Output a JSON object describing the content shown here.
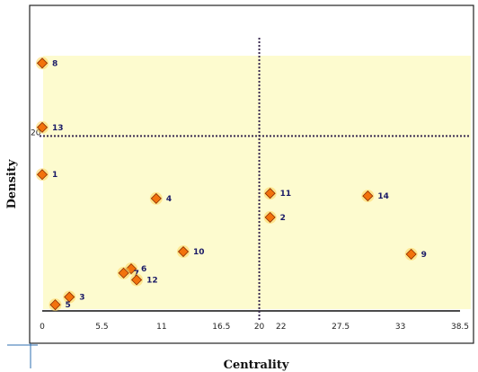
{
  "chart_data": {
    "type": "scatter",
    "xlabel": "Centrality",
    "ylabel": "Density",
    "x_ticks": [
      "0",
      "5.5",
      "11",
      "16.5",
      "20",
      "22",
      "27.5",
      "33",
      "38.5"
    ],
    "x_tick_values": [
      0,
      5.5,
      11,
      16.5,
      20,
      22,
      27.5,
      33,
      38.5
    ],
    "xlim": [
      0,
      38.5
    ],
    "ylim": [
      0,
      30
    ],
    "vertical_reference": {
      "x": 20,
      "label": "20"
    },
    "horizontal_reference": {
      "y": 20,
      "label": "20"
    },
    "grid": false,
    "points": [
      {
        "label": "8",
        "x": 0,
        "y": 28.5
      },
      {
        "label": "13",
        "x": 0,
        "y": 21.0
      },
      {
        "label": "1",
        "x": 0,
        "y": 15.5
      },
      {
        "label": "4",
        "x": 10.5,
        "y": 12.7
      },
      {
        "label": "11",
        "x": 21.0,
        "y": 13.3
      },
      {
        "label": "2",
        "x": 21.0,
        "y": 10.5
      },
      {
        "label": "14",
        "x": 30.0,
        "y": 13.0
      },
      {
        "label": "10",
        "x": 13.0,
        "y": 6.5
      },
      {
        "label": "9",
        "x": 34.0,
        "y": 6.2
      },
      {
        "label": "6",
        "x": 8.2,
        "y": 4.5
      },
      {
        "label": "7",
        "x": 7.5,
        "y": 4.0
      },
      {
        "label": "12",
        "x": 8.7,
        "y": 3.2
      },
      {
        "label": "3",
        "x": 2.5,
        "y": 1.2
      },
      {
        "label": "5",
        "x": 1.2,
        "y": 0.3
      }
    ],
    "colors": {
      "plot_background": "#fdfbcf",
      "marker_fill": "#f2720c",
      "marker_edge": "#8b2d00",
      "marker_glow": "#ffd35a",
      "reference_line": "#3a2a50"
    }
  }
}
